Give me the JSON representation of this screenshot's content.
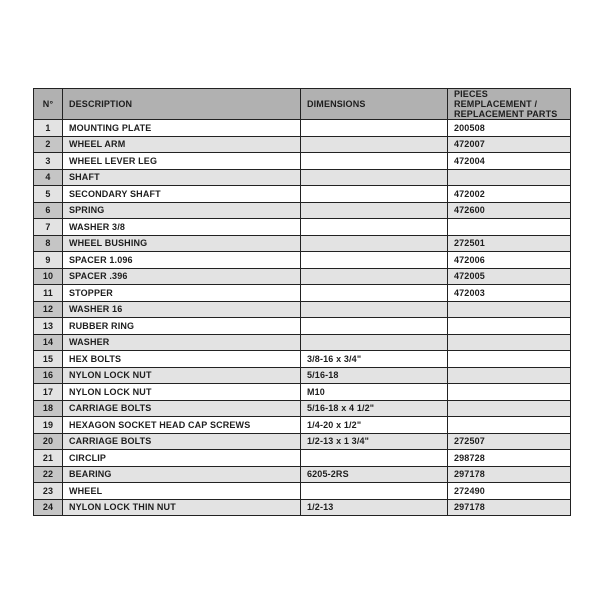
{
  "colors": {
    "header_bg": "#b1b1b1",
    "row_alt_bg": "#e3e3e3",
    "num_odd_bg": "#e3e3e3",
    "num_even_bg": "#c5c5c5",
    "border": "#222222",
    "text": "#1d1d1d",
    "page_bg": "#ffffff"
  },
  "table": {
    "headers": [
      "N°",
      "DESCRIPTION",
      "DIMENSIONS",
      "PIECES REMPLACEMENT / REPLACEMENT PARTS"
    ],
    "rows": [
      {
        "num": "1",
        "description": "MOUNTING PLATE",
        "dimensions": "",
        "part": "200508"
      },
      {
        "num": "2",
        "description": "WHEEL ARM",
        "dimensions": "",
        "part": "472007"
      },
      {
        "num": "3",
        "description": "WHEEL LEVER LEG",
        "dimensions": "",
        "part": "472004"
      },
      {
        "num": "4",
        "description": "SHAFT",
        "dimensions": "",
        "part": ""
      },
      {
        "num": "5",
        "description": "SECONDARY SHAFT",
        "dimensions": "",
        "part": "472002"
      },
      {
        "num": "6",
        "description": "SPRING",
        "dimensions": "",
        "part": "472600"
      },
      {
        "num": "7",
        "description": "WASHER 3/8",
        "dimensions": "",
        "part": ""
      },
      {
        "num": "8",
        "description": "WHEEL BUSHING",
        "dimensions": "",
        "part": "272501"
      },
      {
        "num": "9",
        "description": "SPACER 1.096",
        "dimensions": "",
        "part": "472006"
      },
      {
        "num": "10",
        "description": "SPACER .396",
        "dimensions": "",
        "part": "472005"
      },
      {
        "num": "11",
        "description": "STOPPER",
        "dimensions": "",
        "part": "472003"
      },
      {
        "num": "12",
        "description": "WASHER 16",
        "dimensions": "",
        "part": ""
      },
      {
        "num": "13",
        "description": "RUBBER RING",
        "dimensions": "",
        "part": ""
      },
      {
        "num": "14",
        "description": "WASHER",
        "dimensions": "",
        "part": ""
      },
      {
        "num": "15",
        "description": "HEX BOLTS",
        "dimensions": "3/8-16 x 3/4\"",
        "part": ""
      },
      {
        "num": "16",
        "description": "NYLON LOCK NUT",
        "dimensions": "5/16-18",
        "part": ""
      },
      {
        "num": "17",
        "description": "NYLON LOCK NUT",
        "dimensions": "M10",
        "part": ""
      },
      {
        "num": "18",
        "description": "CARRIAGE BOLTS",
        "dimensions": "5/16-18 x 4 1/2\"",
        "part": ""
      },
      {
        "num": "19",
        "description": "HEXAGON SOCKET HEAD CAP SCREWS",
        "dimensions": "1/4-20 x 1/2\"",
        "part": ""
      },
      {
        "num": "20",
        "description": "CARRIAGE BOLTS",
        "dimensions": "1/2-13 x 1 3/4\"",
        "part": "272507"
      },
      {
        "num": "21",
        "description": "CIRCLIP",
        "dimensions": "",
        "part": "298728"
      },
      {
        "num": "22",
        "description": "BEARING",
        "dimensions": "6205-2RS",
        "part": "297178"
      },
      {
        "num": "23",
        "description": "WHEEL",
        "dimensions": "",
        "part": "272490"
      },
      {
        "num": "24",
        "description": "NYLON LOCK THIN NUT",
        "dimensions": "1/2-13",
        "part": "297178"
      }
    ]
  }
}
